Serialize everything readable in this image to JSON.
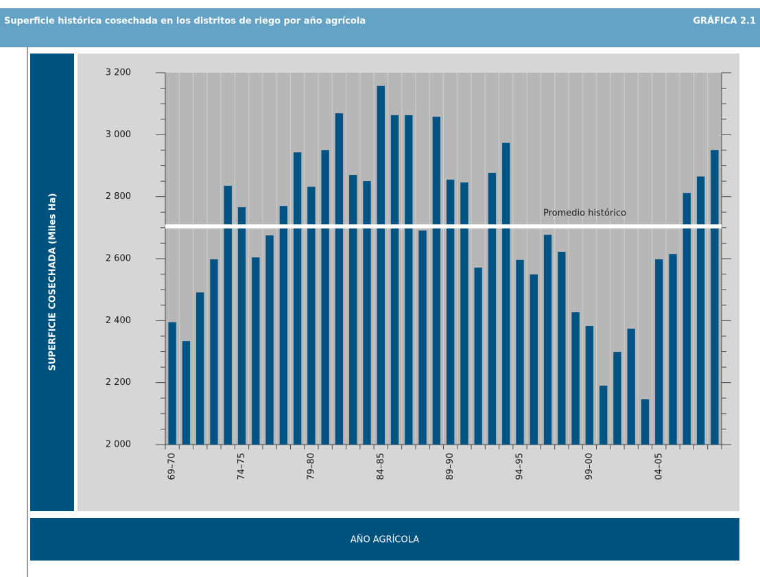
{
  "chart_data": {
    "type": "bar",
    "title": "Superficie histórica cosechada en los distritos de riego por año agrícola",
    "figure_label": "GRÁFICA 2.1",
    "y_label": "SUPERFICIE COSECHADA (Miles Ha)",
    "x_label": "AÑO AGRÍCOLA",
    "categories": [
      "69–70",
      null,
      null,
      null,
      null,
      "74–75",
      null,
      null,
      null,
      null,
      "79–80",
      null,
      null,
      null,
      null,
      "84–85",
      null,
      null,
      null,
      null,
      "89–90",
      null,
      null,
      null,
      null,
      "94–95",
      null,
      null,
      null,
      null,
      "99–00",
      null,
      null,
      null,
      null,
      "04–05",
      null,
      null,
      null,
      null
    ],
    "values": [
      2395,
      2334,
      2491,
      2598,
      2835,
      2766,
      2604,
      2675,
      2770,
      2943,
      2832,
      2950,
      3069,
      2870,
      2850,
      3158,
      3063,
      3063,
      2691,
      3058,
      2855,
      2846,
      2571,
      2877,
      2974,
      2596,
      2549,
      2677,
      2622,
      2427,
      2383,
      2190,
      2299,
      2374,
      2146,
      2598,
      2615,
      2812,
      2865,
      2950
    ],
    "color": "#005383",
    "ylim": [
      2000,
      3200
    ],
    "yticks": [
      {
        "value": 2000,
        "label": "2 000"
      },
      {
        "value": 2200,
        "label": "2 200"
      },
      {
        "value": 2400,
        "label": "2 400"
      },
      {
        "value": 2600,
        "label": "2 600"
      },
      {
        "value": 2800,
        "label": "2 800"
      },
      {
        "value": 3000,
        "label": "3 000"
      },
      {
        "value": 3200,
        "label": "3 200"
      }
    ],
    "reference_line": {
      "value": 2704,
      "label": "Promedio histórico"
    }
  }
}
